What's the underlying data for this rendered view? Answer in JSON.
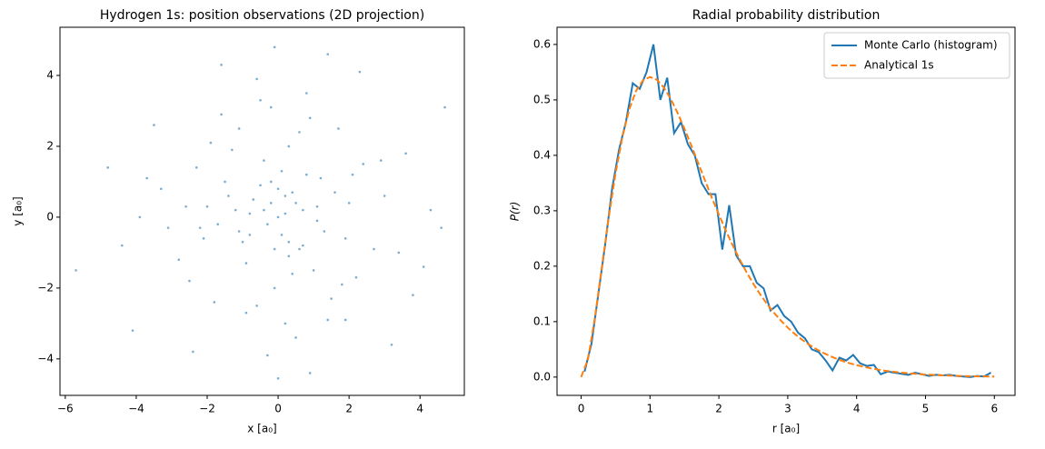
{
  "chart_data": [
    {
      "type": "scatter",
      "title": "Hydrogen 1s: position observations (2D projection)",
      "x_label": "x [a₀]",
      "y_label": "y [a₀]",
      "xlim": [
        -6.15,
        5.25
      ],
      "ylim": [
        -5.03,
        5.36
      ],
      "xticks": [
        {
          "value": -6,
          "label": "−6"
        },
        {
          "value": -4,
          "label": "−4"
        },
        {
          "value": -2,
          "label": "−2"
        },
        0,
        2,
        4
      ],
      "yticks": [
        {
          "value": -4,
          "label": "−4"
        },
        {
          "value": -2,
          "label": "−2"
        },
        0,
        2,
        4
      ],
      "color": "#1f77b4",
      "x": [
        -5.7,
        4.7,
        -0.1,
        0,
        -4.1,
        -4.8,
        4.6,
        3.2,
        -3.9,
        4.1,
        2.3,
        -1.6,
        1.4,
        -3.5,
        3.6,
        -2.4,
        0.9,
        -0.6,
        1.9,
        -1.1,
        0.2,
        -0.3,
        0.5,
        -0.8,
        1.1,
        -1.4,
        0.7,
        -0.2,
        0.3,
        -0.5,
        1.3,
        -1.7,
        0.1,
        0.8,
        -0.9,
        1.6,
        -1.2,
        0.4,
        -0.4,
        0.6,
        -0.7,
        1.0,
        -1.0,
        0.0,
        1.2,
        -1.5,
        2.0,
        -2.1,
        0.3,
        -0.1,
        2.4,
        -2.6,
        1.8,
        -1.9,
        2.7,
        -2.8,
        0.6,
        -0.6,
        1.5,
        -1.3,
        3.0,
        -3.1,
        0.9,
        -0.9,
        2.2,
        -2.3,
        0.2,
        -0.2,
        1.7,
        -1.8,
        3.4,
        -3.3,
        0.5,
        -0.5,
        2.9,
        -2.5,
        1.4,
        -1.6,
        0.8,
        -0.3,
        -4.4,
        4.3,
        -2.0,
        2.1,
        -0.4,
        0.4,
        1.1,
        -1.1,
        0.7,
        -0.8,
        3.8,
        -3.7,
        1.9,
        -2.2,
        0.0,
        0.1,
        -0.1,
        0.2,
        -0.2,
        0.3
      ],
      "y": [
        -1.5,
        3.1,
        4.8,
        -4.55,
        -3.2,
        1.4,
        -0.3,
        -3.6,
        0.0,
        -1.4,
        4.1,
        4.3,
        4.6,
        2.6,
        1.8,
        -3.8,
        -4.4,
        3.9,
        -2.9,
        2.5,
        0.1,
        -0.2,
        0.4,
        -0.5,
        0.3,
        0.6,
        -0.8,
        1.0,
        -1.1,
        0.9,
        -0.4,
        -0.2,
        1.3,
        1.2,
        -1.3,
        0.7,
        0.2,
        -1.6,
        1.6,
        -0.9,
        0.5,
        -1.5,
        -0.7,
        0.0,
        1.1,
        1.0,
        0.4,
        -0.6,
        2.0,
        -2.0,
        1.5,
        0.3,
        -1.9,
        2.1,
        -0.9,
        -1.2,
        2.4,
        -2.5,
        -2.3,
        1.9,
        0.6,
        -0.3,
        2.8,
        -2.7,
        -1.7,
        1.4,
        -3.0,
        3.1,
        2.5,
        -2.4,
        -1.0,
        0.8,
        -3.4,
        3.3,
        1.6,
        -1.8,
        -2.9,
        2.9,
        3.5,
        -3.9,
        -0.8,
        0.2,
        0.3,
        1.2,
        0.2,
        0.7,
        -0.1,
        -0.4,
        0.2,
        0.1,
        -2.2,
        1.1,
        -0.6,
        -0.3,
        0.8,
        -0.5,
        -0.9,
        0.6,
        0.4,
        -0.7
      ]
    },
    {
      "type": "line",
      "title": "Radial probability distribution",
      "x_label": "r [a₀]",
      "y_label": "P(r)",
      "xlim": [
        -0.35,
        6.3
      ],
      "ylim": [
        -0.033,
        0.631
      ],
      "xticks": [
        0,
        1,
        2,
        3,
        4,
        5,
        6
      ],
      "yticks": [
        {
          "value": 0,
          "label": "0.0"
        },
        0.1,
        0.2,
        0.3,
        0.4,
        0.5,
        0.6
      ],
      "legend": "upper right",
      "series": [
        {
          "name": "Monte Carlo (histogram)",
          "color": "#1f77b4",
          "dash": false,
          "x": [
            0.05,
            0.15,
            0.25,
            0.35,
            0.45,
            0.55,
            0.65,
            0.75,
            0.85,
            0.95,
            1.05,
            1.15,
            1.25,
            1.35,
            1.45,
            1.55,
            1.65,
            1.75,
            1.85,
            1.95,
            2.05,
            2.15,
            2.25,
            2.35,
            2.45,
            2.55,
            2.65,
            2.75,
            2.85,
            2.95,
            3.05,
            3.15,
            3.25,
            3.35,
            3.45,
            3.55,
            3.65,
            3.75,
            3.85,
            3.95,
            4.05,
            4.15,
            4.25,
            4.35,
            4.45,
            4.55,
            4.65,
            4.75,
            4.85,
            4.95,
            5.05,
            5.15,
            5.25,
            5.35,
            5.45,
            5.55,
            5.65,
            5.75,
            5.85,
            5.95
          ],
          "values": [
            0.01,
            0.06,
            0.15,
            0.24,
            0.34,
            0.41,
            0.46,
            0.53,
            0.52,
            0.55,
            0.6,
            0.5,
            0.54,
            0.44,
            0.46,
            0.42,
            0.4,
            0.35,
            0.33,
            0.33,
            0.23,
            0.31,
            0.22,
            0.2,
            0.2,
            0.17,
            0.16,
            0.12,
            0.13,
            0.11,
            0.1,
            0.08,
            0.07,
            0.05,
            0.045,
            0.03,
            0.012,
            0.035,
            0.03,
            0.04,
            0.025,
            0.02,
            0.022,
            0.005,
            0.01,
            0.008,
            0.006,
            0.004,
            0.008,
            0.005,
            0.002,
            0.004,
            0.003,
            0.004,
            0.002,
            0.001,
            0,
            0.002,
            0.001,
            0.008
          ]
        },
        {
          "name": "Analytical 1s",
          "color": "#ff7f0e",
          "dash": true,
          "x": [
            0,
            0.1,
            0.2,
            0.3,
            0.4,
            0.5,
            0.6,
            0.7,
            0.8,
            0.9,
            1.0,
            1.1,
            1.2,
            1.3,
            1.4,
            1.5,
            1.6,
            1.7,
            1.8,
            1.9,
            2.0,
            2.1,
            2.2,
            2.3,
            2.4,
            2.5,
            2.6,
            2.7,
            2.8,
            2.9,
            3.0,
            3.1,
            3.2,
            3.3,
            3.4,
            3.5,
            3.6,
            3.7,
            3.8,
            3.9,
            4.0,
            4.2,
            4.4,
            4.6,
            4.8,
            5.0,
            5.2,
            5.4,
            5.6,
            5.8,
            6.0
          ],
          "values": [
            0,
            0.0327,
            0.1073,
            0.1976,
            0.2876,
            0.3679,
            0.4337,
            0.4833,
            0.5169,
            0.5356,
            0.5413,
            0.5363,
            0.5225,
            0.5021,
            0.4767,
            0.4481,
            0.4177,
            0.3861,
            0.3543,
            0.323,
            0.2931,
            0.2646,
            0.2378,
            0.2127,
            0.1896,
            0.1684,
            0.1492,
            0.1317,
            0.116,
            0.1019,
            0.0892,
            0.078,
            0.0681,
            0.0593,
            0.0515,
            0.0447,
            0.0387,
            0.0335,
            0.0289,
            0.0249,
            0.0215,
            0.0159,
            0.0117,
            0.0086,
            0.0063,
            0.0045,
            0.0033,
            0.0024,
            0.0017,
            0.0012,
            0.0009
          ]
        }
      ]
    }
  ]
}
